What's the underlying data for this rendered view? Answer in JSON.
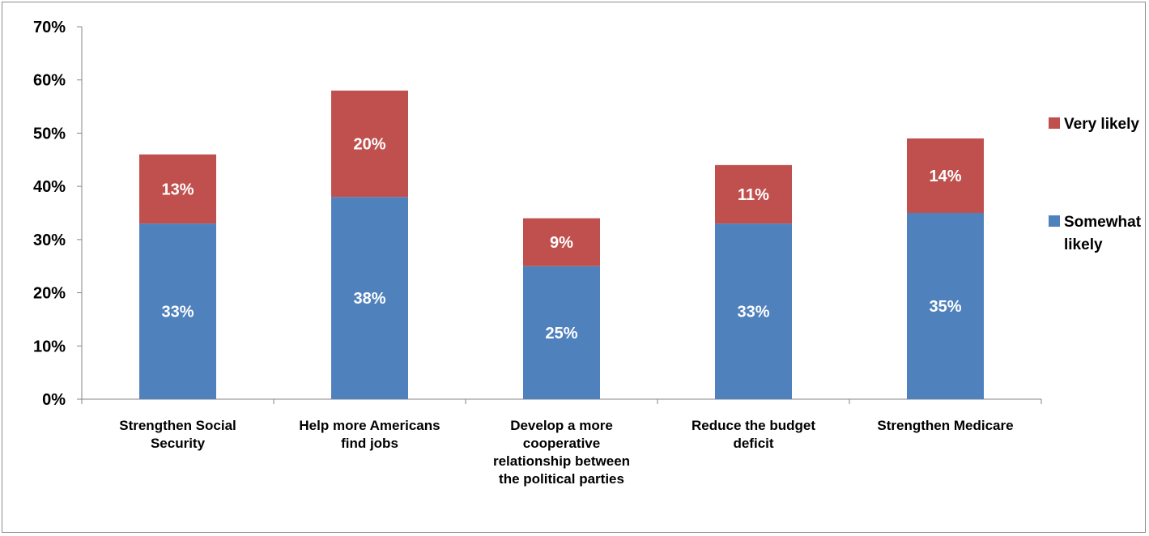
{
  "chart_data": {
    "type": "bar",
    "stacked": true,
    "title": "",
    "xlabel": "",
    "ylabel": "",
    "ylim": [
      0,
      70
    ],
    "y_tick_step": 10,
    "y_tick_format": "percent",
    "grid": false,
    "legend_position": "right",
    "categories": [
      [
        "Strengthen Social",
        "Security"
      ],
      [
        "Help more Americans",
        "find jobs"
      ],
      [
        "Develop a more",
        "cooperative",
        "relationship between",
        "the political parties"
      ],
      [
        "Reduce the budget",
        "deficit"
      ],
      [
        "Strengthen Medicare"
      ]
    ],
    "series": [
      {
        "name": "Somewhat likely",
        "legend_lines": [
          "Somewhat",
          "likely"
        ],
        "color": "#4F81BD",
        "values": [
          33,
          38,
          25,
          33,
          35
        ]
      },
      {
        "name": "Very likely",
        "legend_lines": [
          "Very likely"
        ],
        "color": "#C0504D",
        "values": [
          13,
          20,
          9,
          11,
          14
        ]
      }
    ]
  }
}
